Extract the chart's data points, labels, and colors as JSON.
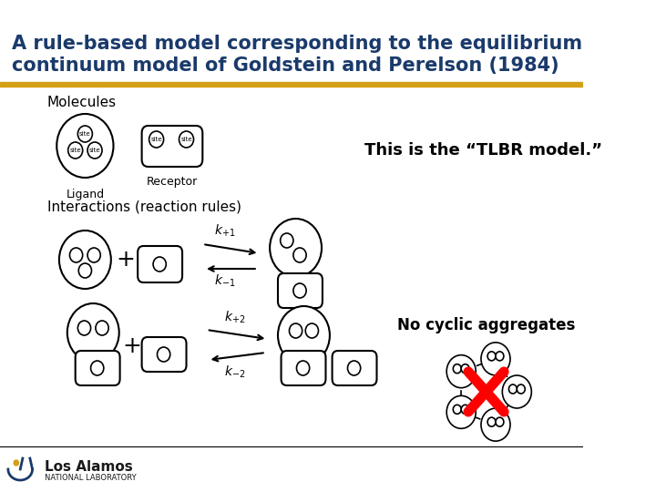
{
  "title_line1": "A rule-based model corresponding to the equilibrium",
  "title_line2": "continuum model of Goldstein and Perelson (1984)",
  "title_color": "#1a3a6b",
  "title_fontsize": 15,
  "bg_color": "#ffffff",
  "gold_bar_color": "#d4a017",
  "tlbr_text": "This is the “TLBR model.”",
  "no_cyclic_text": "No cyclic aggregates",
  "molecules_label": "Molecules",
  "ligand_label": "Ligand",
  "receptor_label": "Receptor",
  "interactions_label": "Interactions (reaction rules)"
}
